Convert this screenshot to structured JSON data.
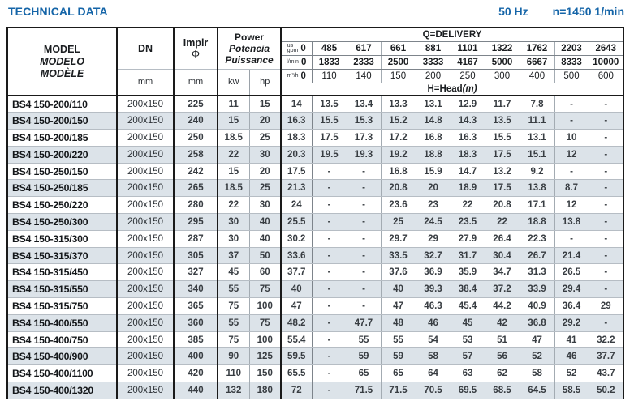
{
  "page": {
    "title": "TECHNICAL DATA",
    "frequency": "50 Hz",
    "speed": "n=1450 1/min"
  },
  "accent_color": "#1565a8",
  "stripe_color": "#dce3e9",
  "table": {
    "header": {
      "model_lines": [
        "MODEL",
        "MODELO",
        "MODÈLE"
      ],
      "dn_label": "DN",
      "dn_unit": "mm",
      "implr_label": "Implr",
      "implr_symbol": "Φ",
      "implr_unit": "mm",
      "power_lines": [
        "Power",
        "Potencia",
        "Puissance"
      ],
      "kw_label": "kw",
      "hp_label": "hp",
      "delivery_title": "Q=DELIVERY",
      "head_title_main": "H=Head",
      "head_title_unit": "(m)",
      "flow_rows": [
        {
          "unit_lines": [
            "us",
            "gpm"
          ],
          "zero": "0",
          "values": [
            "485",
            "617",
            "661",
            "881",
            "1101",
            "1322",
            "1762",
            "2203",
            "2643"
          ]
        },
        {
          "unit_lines": [
            "l/min"
          ],
          "zero": "0",
          "values": [
            "1833",
            "2333",
            "2500",
            "3333",
            "4167",
            "5000",
            "6667",
            "8333",
            "10000"
          ]
        },
        {
          "unit_lines": [
            "m³/h"
          ],
          "zero": "0",
          "values": [
            "110",
            "140",
            "150",
            "200",
            "250",
            "300",
            "400",
            "500",
            "600"
          ]
        }
      ]
    },
    "rows": [
      {
        "model": "BS4 150-200/110",
        "dn": "200x150",
        "implr": "225",
        "kw": "11",
        "hp": "15",
        "heads": [
          "14",
          "13.5",
          "13.4",
          "13.3",
          "13.1",
          "12.9",
          "11.7",
          "7.8",
          "-",
          "-"
        ]
      },
      {
        "model": "BS4 150-200/150",
        "dn": "200x150",
        "implr": "240",
        "kw": "15",
        "hp": "20",
        "heads": [
          "16.3",
          "15.5",
          "15.3",
          "15.2",
          "14.8",
          "14.3",
          "13.5",
          "11.1",
          "-",
          "-"
        ]
      },
      {
        "model": "BS4 150-200/185",
        "dn": "200x150",
        "implr": "250",
        "kw": "18.5",
        "hp": "25",
        "heads": [
          "18.3",
          "17.5",
          "17.3",
          "17.2",
          "16.8",
          "16.3",
          "15.5",
          "13.1",
          "10",
          "-"
        ]
      },
      {
        "model": "BS4 150-200/220",
        "dn": "200x150",
        "implr": "258",
        "kw": "22",
        "hp": "30",
        "heads": [
          "20.3",
          "19.5",
          "19.3",
          "19.2",
          "18.8",
          "18.3",
          "17.5",
          "15.1",
          "12",
          "-"
        ]
      },
      {
        "model": "BS4 150-250/150",
        "dn": "200x150",
        "implr": "242",
        "kw": "15",
        "hp": "20",
        "heads": [
          "17.5",
          "-",
          "-",
          "16.8",
          "15.9",
          "14.7",
          "13.2",
          "9.2",
          "-",
          "-"
        ]
      },
      {
        "model": "BS4 150-250/185",
        "dn": "200x150",
        "implr": "265",
        "kw": "18.5",
        "hp": "25",
        "heads": [
          "21.3",
          "-",
          "-",
          "20.8",
          "20",
          "18.9",
          "17.5",
          "13.8",
          "8.7",
          "-"
        ]
      },
      {
        "model": "BS4 150-250/220",
        "dn": "200x150",
        "implr": "280",
        "kw": "22",
        "hp": "30",
        "heads": [
          "24",
          "-",
          "-",
          "23.6",
          "23",
          "22",
          "20.8",
          "17.1",
          "12",
          "-"
        ]
      },
      {
        "model": "BS4 150-250/300",
        "dn": "200x150",
        "implr": "295",
        "kw": "30",
        "hp": "40",
        "heads": [
          "25.5",
          "-",
          "-",
          "25",
          "24.5",
          "23.5",
          "22",
          "18.8",
          "13.8",
          "-"
        ]
      },
      {
        "model": "BS4 150-315/300",
        "dn": "200x150",
        "implr": "287",
        "kw": "30",
        "hp": "40",
        "heads": [
          "30.2",
          "-",
          "-",
          "29.7",
          "29",
          "27.9",
          "26.4",
          "22.3",
          "-",
          "-"
        ]
      },
      {
        "model": "BS4 150-315/370",
        "dn": "200x150",
        "implr": "305",
        "kw": "37",
        "hp": "50",
        "heads": [
          "33.6",
          "-",
          "-",
          "33.5",
          "32.7",
          "31.7",
          "30.4",
          "26.7",
          "21.4",
          "-"
        ]
      },
      {
        "model": "BS4 150-315/450",
        "dn": "200x150",
        "implr": "327",
        "kw": "45",
        "hp": "60",
        "heads": [
          "37.7",
          "-",
          "-",
          "37.6",
          "36.9",
          "35.9",
          "34.7",
          "31.3",
          "26.5",
          "-"
        ]
      },
      {
        "model": "BS4 150-315/550",
        "dn": "200x150",
        "implr": "340",
        "kw": "55",
        "hp": "75",
        "heads": [
          "40",
          "-",
          "-",
          "40",
          "39.3",
          "38.4",
          "37.2",
          "33.9",
          "29.4",
          "-"
        ]
      },
      {
        "model": "BS4 150-315/750",
        "dn": "200x150",
        "implr": "365",
        "kw": "75",
        "hp": "100",
        "heads": [
          "47",
          "-",
          "-",
          "47",
          "46.3",
          "45.4",
          "44.2",
          "40.9",
          "36.4",
          "29"
        ]
      },
      {
        "model": "BS4 150-400/550",
        "dn": "200x150",
        "implr": "360",
        "kw": "55",
        "hp": "75",
        "heads": [
          "48.2",
          "-",
          "47.7",
          "48",
          "46",
          "45",
          "42",
          "36.8",
          "29.2",
          "-"
        ]
      },
      {
        "model": "BS4 150-400/750",
        "dn": "200x150",
        "implr": "385",
        "kw": "75",
        "hp": "100",
        "heads": [
          "55.4",
          "-",
          "55",
          "55",
          "54",
          "53",
          "51",
          "47",
          "41",
          "32.2"
        ]
      },
      {
        "model": "BS4 150-400/900",
        "dn": "200x150",
        "implr": "400",
        "kw": "90",
        "hp": "125",
        "heads": [
          "59.5",
          "-",
          "59",
          "59",
          "58",
          "57",
          "56",
          "52",
          "46",
          "37.7"
        ]
      },
      {
        "model": "BS4 150-400/1100",
        "dn": "200x150",
        "implr": "420",
        "kw": "110",
        "hp": "150",
        "heads": [
          "65.5",
          "-",
          "65",
          "65",
          "64",
          "63",
          "62",
          "58",
          "52",
          "43.7"
        ]
      },
      {
        "model": "BS4 150-400/1320",
        "dn": "200x150",
        "implr": "440",
        "kw": "132",
        "hp": "180",
        "heads": [
          "72",
          "-",
          "71.5",
          "71.5",
          "70.5",
          "69.5",
          "68.5",
          "64.5",
          "58.5",
          "50.2"
        ]
      }
    ]
  }
}
